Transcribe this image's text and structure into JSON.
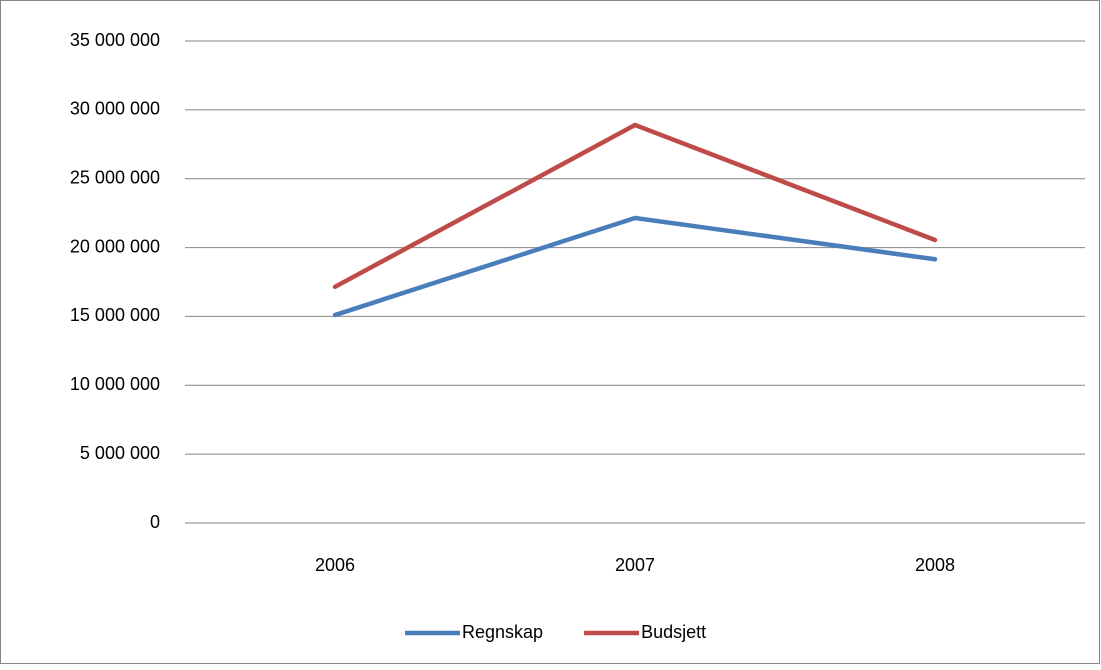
{
  "chart_data": {
    "type": "line",
    "categories": [
      "2006",
      "2007",
      "2008"
    ],
    "series": [
      {
        "name": "Regnskap",
        "color": "#4a7ebb",
        "values": [
          15100000,
          22150000,
          19150000
        ]
      },
      {
        "name": "Budsjett",
        "color": "#be4b48",
        "values": [
          17150000,
          28900000,
          20550000
        ]
      }
    ],
    "ylim": [
      0,
      35000000
    ],
    "yticks": [
      0,
      {
        "value": 5000000,
        "label": "5 000 000"
      },
      {
        "value": 10000000,
        "label": "10 000 000"
      },
      {
        "value": 15000000,
        "label": "15 000 000"
      },
      {
        "value": 20000000,
        "label": "20 000 000"
      },
      {
        "value": 25000000,
        "label": "25 000 000"
      },
      {
        "value": 30000000,
        "label": "30 000 000"
      },
      {
        "value": 35000000,
        "label": "35 000 000"
      }
    ],
    "grid": true,
    "legend": "bottom"
  }
}
